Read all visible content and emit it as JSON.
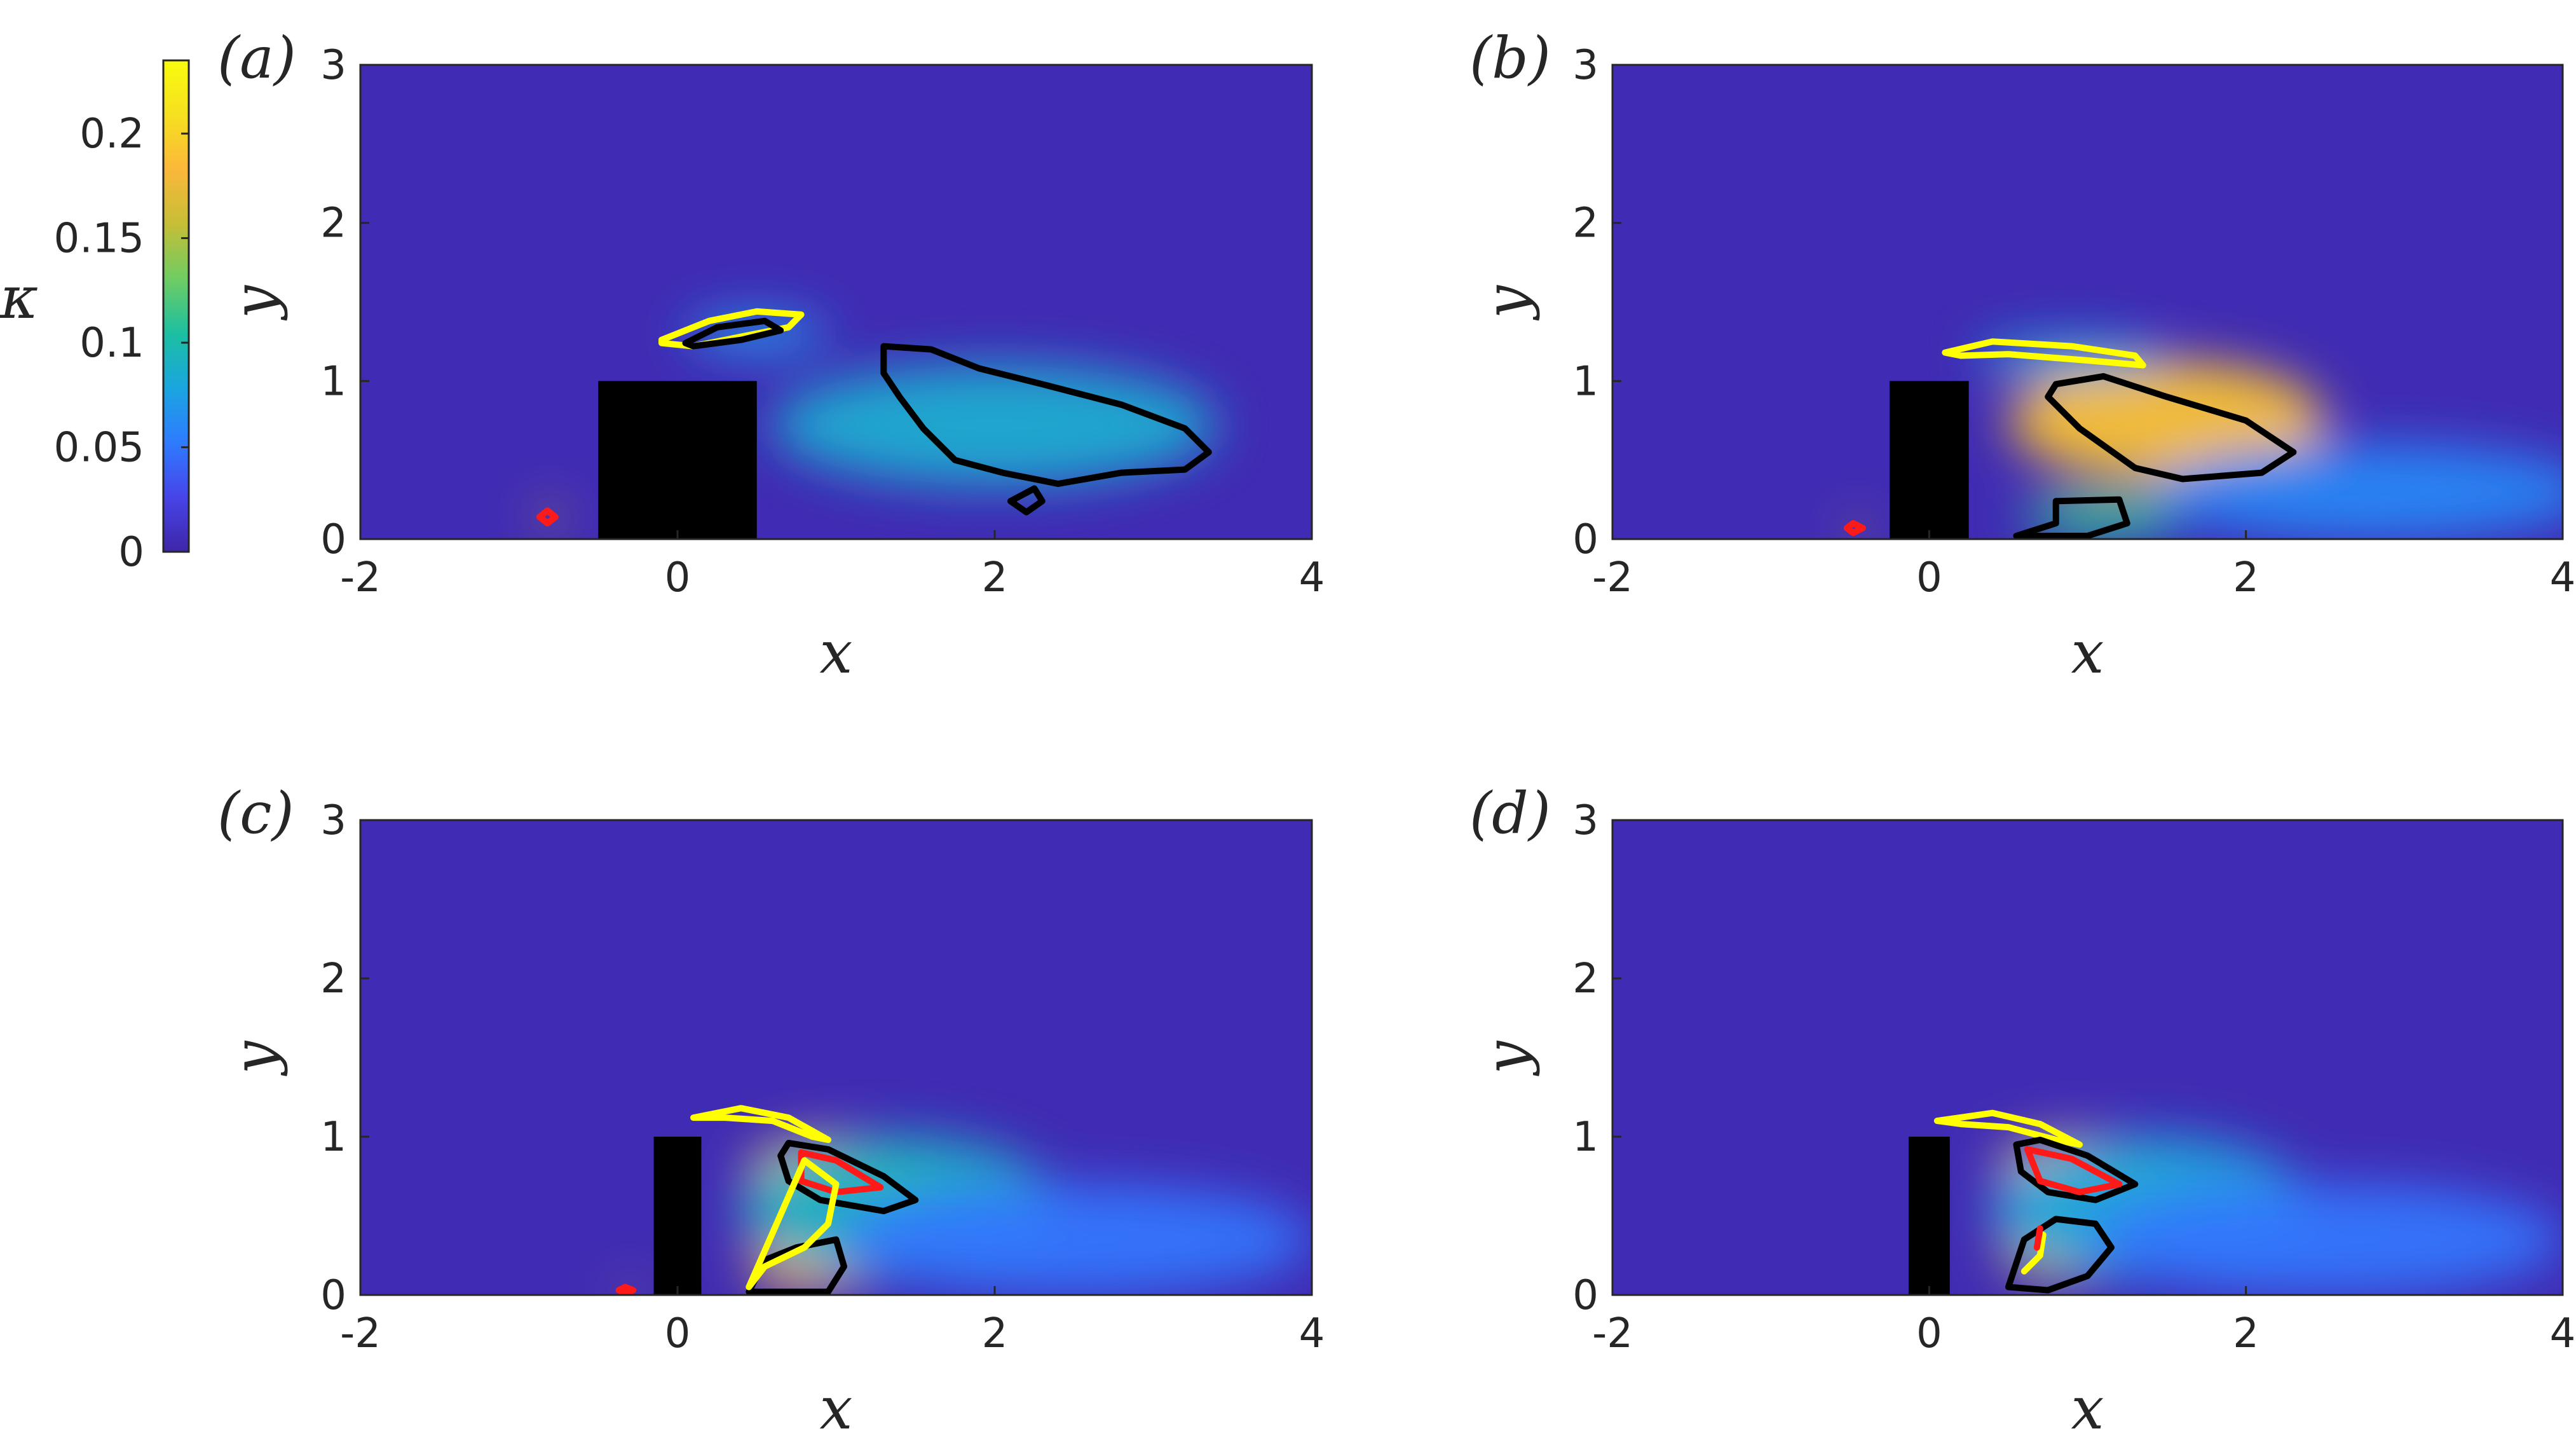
{
  "colorbar": {
    "label": "κ",
    "range": [
      0,
      0.235
    ],
    "ticks": [
      "0",
      "0.05",
      "0.1",
      "0.15",
      "0.2"
    ],
    "tick_values": [
      0,
      0.05,
      0.1,
      0.15,
      0.2
    ],
    "colormap": "parula",
    "stops": [
      "#3e26a8",
      "#4744e8",
      "#2f7bff",
      "#1aa5e0",
      "#1cbfa2",
      "#6fcc62",
      "#c6be37",
      "#fbb83a",
      "#f6e020",
      "#f9fb0e"
    ]
  },
  "contour_colors": {
    "black": "#000000",
    "yellow": "#ffff00",
    "red": "#ff1a1a"
  },
  "chart_data": [
    {
      "type": "heatmap",
      "panel_label": "(a)",
      "xlabel": "x",
      "ylabel": "y",
      "xlim": [
        -2,
        4
      ],
      "ylim": [
        0,
        3
      ],
      "xticks": [
        "-2",
        "0",
        "2",
        "4"
      ],
      "yticks": [
        "0",
        "1",
        "2",
        "3"
      ],
      "obstacle": {
        "x": [
          -0.5,
          0.5
        ],
        "y": [
          0,
          1
        ]
      },
      "hotspots": [
        {
          "x": 2.0,
          "y": 0.72,
          "rx": 1.4,
          "ry": 0.38,
          "kappa": 0.085
        },
        {
          "x": 0.5,
          "y": 1.3,
          "rx": 0.45,
          "ry": 0.12,
          "kappa": 0.07
        },
        {
          "x": -0.8,
          "y": 0.14,
          "rx": 0.06,
          "ry": 0.06,
          "kappa": 0.2
        }
      ],
      "contours": [
        {
          "color": "yellow",
          "points": [
            [
              -0.1,
              1.26
            ],
            [
              0.2,
              1.38
            ],
            [
              0.5,
              1.44
            ],
            [
              0.78,
              1.42
            ],
            [
              0.7,
              1.34
            ],
            [
              0.4,
              1.28
            ],
            [
              0.1,
              1.22
            ],
            [
              -0.1,
              1.24
            ]
          ]
        },
        {
          "color": "black",
          "points": [
            [
              0.05,
              1.24
            ],
            [
              0.25,
              1.34
            ],
            [
              0.55,
              1.38
            ],
            [
              0.65,
              1.32
            ],
            [
              0.4,
              1.26
            ],
            [
              0.1,
              1.22
            ]
          ]
        },
        {
          "color": "black",
          "points": [
            [
              1.3,
              1.22
            ],
            [
              1.6,
              1.2
            ],
            [
              1.9,
              1.08
            ],
            [
              2.3,
              0.98
            ],
            [
              2.8,
              0.85
            ],
            [
              3.2,
              0.7
            ],
            [
              3.35,
              0.55
            ],
            [
              3.2,
              0.44
            ],
            [
              2.8,
              0.42
            ],
            [
              2.4,
              0.35
            ],
            [
              2.05,
              0.42
            ],
            [
              1.75,
              0.5
            ],
            [
              1.55,
              0.7
            ],
            [
              1.4,
              0.9
            ],
            [
              1.3,
              1.05
            ]
          ]
        },
        {
          "color": "black",
          "points": [
            [
              2.1,
              0.24
            ],
            [
              2.25,
              0.32
            ],
            [
              2.3,
              0.24
            ],
            [
              2.2,
              0.17
            ]
          ]
        },
        {
          "color": "red",
          "points": [
            [
              -0.82,
              0.18
            ],
            [
              -0.77,
              0.14
            ],
            [
              -0.82,
              0.1
            ],
            [
              -0.87,
              0.14
            ]
          ]
        }
      ]
    },
    {
      "type": "heatmap",
      "panel_label": "(b)",
      "xlabel": "x",
      "ylabel": "y",
      "xlim": [
        -2,
        4
      ],
      "ylim": [
        0,
        3
      ],
      "xticks": [
        "-2",
        "0",
        "2",
        "4"
      ],
      "yticks": [
        "0",
        "1",
        "2",
        "3"
      ],
      "obstacle": {
        "x": [
          -0.25,
          0.25
        ],
        "y": [
          0,
          1
        ]
      },
      "hotspots": [
        {
          "x": 1.5,
          "y": 0.75,
          "rx": 1.0,
          "ry": 0.38,
          "kappa": 0.19
        },
        {
          "x": 1.1,
          "y": 0.15,
          "rx": 0.5,
          "ry": 0.15,
          "kappa": 0.11
        },
        {
          "x": 0.9,
          "y": 1.15,
          "rx": 0.6,
          "ry": 0.12,
          "kappa": 0.08
        },
        {
          "x": 2.8,
          "y": 0.3,
          "rx": 1.4,
          "ry": 0.3,
          "kappa": 0.06
        },
        {
          "x": -0.45,
          "y": 0.06,
          "rx": 0.05,
          "ry": 0.05,
          "kappa": 0.2
        }
      ],
      "contours": [
        {
          "color": "yellow",
          "points": [
            [
              0.1,
              1.18
            ],
            [
              0.4,
              1.25
            ],
            [
              0.9,
              1.22
            ],
            [
              1.3,
              1.16
            ],
            [
              1.35,
              1.1
            ],
            [
              1.0,
              1.13
            ],
            [
              0.5,
              1.17
            ],
            [
              0.2,
              1.16
            ]
          ]
        },
        {
          "color": "black",
          "points": [
            [
              0.8,
              0.98
            ],
            [
              1.1,
              1.03
            ],
            [
              1.5,
              0.9
            ],
            [
              2.0,
              0.75
            ],
            [
              2.3,
              0.55
            ],
            [
              2.1,
              0.42
            ],
            [
              1.6,
              0.38
            ],
            [
              1.3,
              0.45
            ],
            [
              0.95,
              0.7
            ],
            [
              0.75,
              0.9
            ]
          ]
        },
        {
          "color": "black",
          "points": [
            [
              0.55,
              0.02
            ],
            [
              0.8,
              0.1
            ],
            [
              0.8,
              0.24
            ],
            [
              1.2,
              0.25
            ],
            [
              1.25,
              0.1
            ],
            [
              1.0,
              0.02
            ]
          ]
        },
        {
          "color": "red",
          "points": [
            [
              -0.48,
              0.1
            ],
            [
              -0.42,
              0.07
            ],
            [
              -0.48,
              0.04
            ],
            [
              -0.52,
              0.07
            ]
          ]
        }
      ]
    },
    {
      "type": "heatmap",
      "panel_label": "(c)",
      "xlabel": "x",
      "ylabel": "y",
      "xlim": [
        -2,
        4
      ],
      "ylim": [
        0,
        3
      ],
      "xticks": [
        "-2",
        "0",
        "2",
        "4"
      ],
      "yticks": [
        "0",
        "1",
        "2",
        "3"
      ],
      "obstacle": {
        "x": [
          -0.15,
          0.15
        ],
        "y": [
          0,
          1
        ]
      },
      "hotspots": [
        {
          "x": 1.0,
          "y": 0.78,
          "rx": 0.55,
          "ry": 0.22,
          "kappa": 0.2
        },
        {
          "x": 0.85,
          "y": 0.2,
          "rx": 0.4,
          "ry": 0.18,
          "kappa": 0.18
        },
        {
          "x": 1.4,
          "y": 0.55,
          "rx": 1.0,
          "ry": 0.45,
          "kappa": 0.09
        },
        {
          "x": 2.5,
          "y": 0.35,
          "rx": 1.5,
          "ry": 0.35,
          "kappa": 0.05
        },
        {
          "x": -0.3,
          "y": 0.03,
          "rx": 0.05,
          "ry": 0.04,
          "kappa": 0.2
        }
      ],
      "contours": [
        {
          "color": "yellow",
          "points": [
            [
              0.1,
              1.12
            ],
            [
              0.4,
              1.18
            ],
            [
              0.7,
              1.12
            ],
            [
              0.95,
              0.98
            ],
            [
              0.85,
              1.0
            ],
            [
              0.6,
              1.1
            ],
            [
              0.3,
              1.12
            ]
          ]
        },
        {
          "color": "black",
          "points": [
            [
              0.7,
              0.96
            ],
            [
              0.95,
              0.92
            ],
            [
              1.3,
              0.75
            ],
            [
              1.5,
              0.6
            ],
            [
              1.3,
              0.53
            ],
            [
              0.9,
              0.6
            ],
            [
              0.7,
              0.72
            ],
            [
              0.65,
              0.88
            ]
          ]
        },
        {
          "color": "black",
          "points": [
            [
              0.45,
              0.02
            ],
            [
              0.55,
              0.22
            ],
            [
              0.75,
              0.3
            ],
            [
              1.0,
              0.35
            ],
            [
              1.05,
              0.18
            ],
            [
              0.95,
              0.02
            ]
          ]
        },
        {
          "color": "red",
          "points": [
            [
              0.78,
              0.9
            ],
            [
              1.0,
              0.85
            ],
            [
              1.28,
              0.68
            ],
            [
              1.0,
              0.65
            ],
            [
              0.78,
              0.72
            ]
          ]
        },
        {
          "color": "yellow",
          "points": [
            [
              0.8,
              0.85
            ],
            [
              1.0,
              0.7
            ],
            [
              0.95,
              0.45
            ],
            [
              0.8,
              0.3
            ],
            [
              0.55,
              0.18
            ],
            [
              0.45,
              0.05
            ]
          ]
        },
        {
          "color": "red",
          "points": [
            [
              -0.33,
              0.05
            ],
            [
              -0.28,
              0.03
            ],
            [
              -0.33,
              0.01
            ],
            [
              -0.37,
              0.03
            ]
          ]
        }
      ]
    },
    {
      "type": "heatmap",
      "panel_label": "(d)",
      "xlabel": "x",
      "ylabel": "y",
      "xlim": [
        -2,
        4
      ],
      "ylim": [
        0,
        3
      ],
      "xticks": [
        "-2",
        "0",
        "2",
        "4"
      ],
      "yticks": [
        "0",
        "1",
        "2",
        "3"
      ],
      "obstacle": {
        "x": [
          -0.13,
          0.13
        ],
        "y": [
          0,
          1
        ]
      },
      "hotspots": [
        {
          "x": 1.0,
          "y": 0.82,
          "rx": 0.55,
          "ry": 0.18,
          "kappa": 0.2
        },
        {
          "x": 0.85,
          "y": 0.3,
          "rx": 0.4,
          "ry": 0.22,
          "kappa": 0.16
        },
        {
          "x": 1.4,
          "y": 0.55,
          "rx": 1.0,
          "ry": 0.45,
          "kappa": 0.08
        },
        {
          "x": 2.5,
          "y": 0.35,
          "rx": 1.5,
          "ry": 0.35,
          "kappa": 0.05
        }
      ],
      "contours": [
        {
          "color": "yellow",
          "points": [
            [
              0.05,
              1.1
            ],
            [
              0.4,
              1.15
            ],
            [
              0.7,
              1.08
            ],
            [
              0.95,
              0.95
            ],
            [
              0.8,
              0.98
            ],
            [
              0.5,
              1.06
            ],
            [
              0.2,
              1.08
            ]
          ]
        },
        {
          "color": "black",
          "points": [
            [
              0.55,
              0.95
            ],
            [
              0.7,
              0.98
            ],
            [
              1.0,
              0.88
            ],
            [
              1.3,
              0.7
            ],
            [
              1.05,
              0.6
            ],
            [
              0.75,
              0.65
            ],
            [
              0.58,
              0.78
            ]
          ]
        },
        {
          "color": "red",
          "points": [
            [
              0.62,
              0.92
            ],
            [
              0.9,
              0.86
            ],
            [
              1.2,
              0.7
            ],
            [
              0.95,
              0.65
            ],
            [
              0.7,
              0.72
            ]
          ]
        },
        {
          "color": "black",
          "points": [
            [
              0.5,
              0.05
            ],
            [
              0.6,
              0.35
            ],
            [
              0.8,
              0.48
            ],
            [
              1.05,
              0.45
            ],
            [
              1.15,
              0.3
            ],
            [
              1.0,
              0.12
            ],
            [
              0.75,
              0.03
            ]
          ]
        },
        {
          "color": "yellow",
          "points": [
            [
              0.6,
              0.15
            ],
            [
              0.7,
              0.25
            ],
            [
              0.72,
              0.38
            ]
          ]
        },
        {
          "color": "red",
          "points": [
            [
              0.68,
              0.3
            ],
            [
              0.7,
              0.42
            ]
          ]
        }
      ]
    }
  ]
}
